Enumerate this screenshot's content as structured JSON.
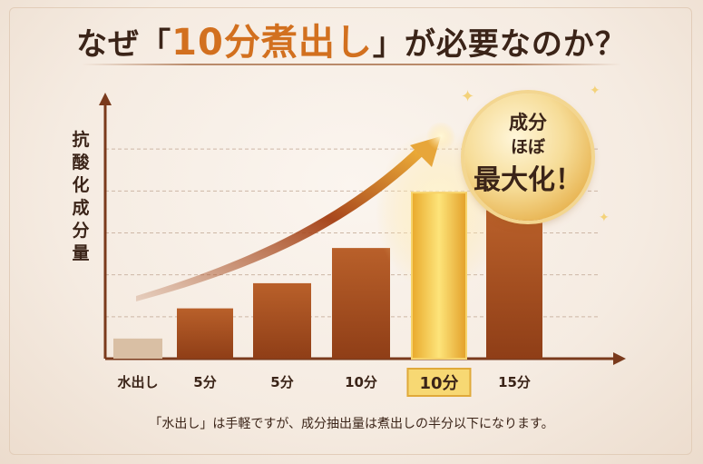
{
  "title": {
    "prefix": "なぜ「",
    "emphasis": "10分煮出し",
    "suffix": "」が必要なのか？"
  },
  "badge": {
    "line1": "成分",
    "line2": "ほぼ",
    "line3": "最大化！"
  },
  "footnote": "「水出し」は手軽ですが、成分抽出量は煮出しの半分以下になります。",
  "colors": {
    "bar": "#b9602a",
    "bar_dark": "#8f3e17",
    "bar_light": "#d9bfa4",
    "bar_highlight": "#f1c23c",
    "axis": "#7a3a1c",
    "accent": "#d2701f",
    "text": "#3b2418"
  },
  "chart_data": {
    "type": "bar",
    "ylabel": "抗酸化成分量",
    "xlabel": "",
    "categories": [
      "水出し",
      "5分",
      "5分",
      "10分",
      "10分",
      "15分"
    ],
    "values": [
      8,
      20,
      30,
      44,
      66,
      59
    ],
    "highlight_index": 4,
    "ylim": [
      0,
      100
    ],
    "grid": true,
    "trend_arrow": true
  }
}
